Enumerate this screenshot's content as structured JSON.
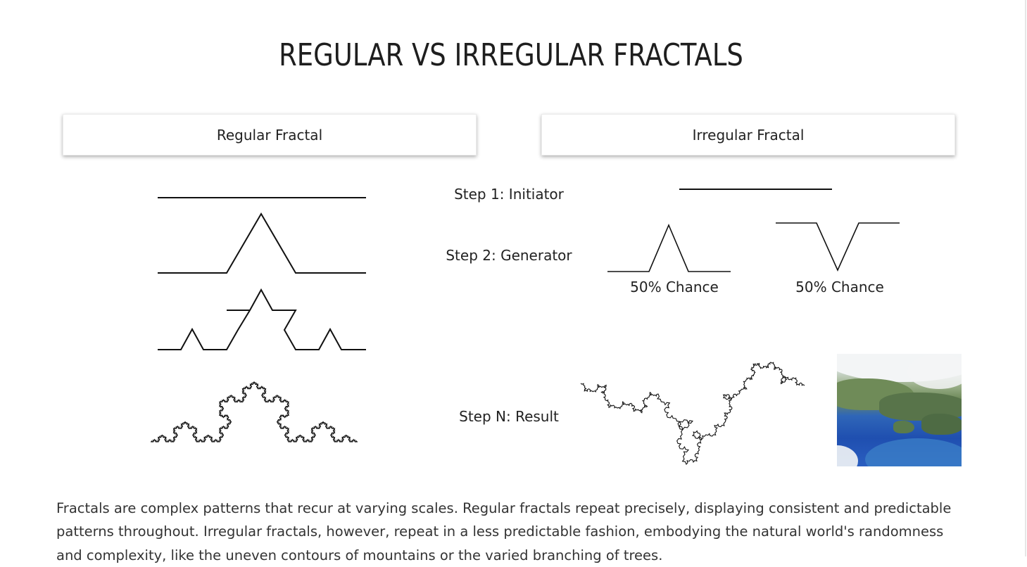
{
  "title": "REGULAR VS IRREGULAR FRACTALS",
  "headers": {
    "regular": "Regular Fractal",
    "irregular": "Irregular Fractal"
  },
  "steps": {
    "step1": "Step 1: Initiator",
    "step2": "Step 2: Generator",
    "stepN": "Step N: Result"
  },
  "chances": {
    "left": "50% Chance",
    "right": "50% Chance"
  },
  "description": "Fractals are complex patterns that recur at varying scales. Regular fractals repeat precisely, displaying consistent and predictable patterns throughout. Irregular fractals, however, repeat in a less predictable fashion, embodying the natural world's randomness and complexity, like the uneven contours of mountains or the varied branching of trees."
}
